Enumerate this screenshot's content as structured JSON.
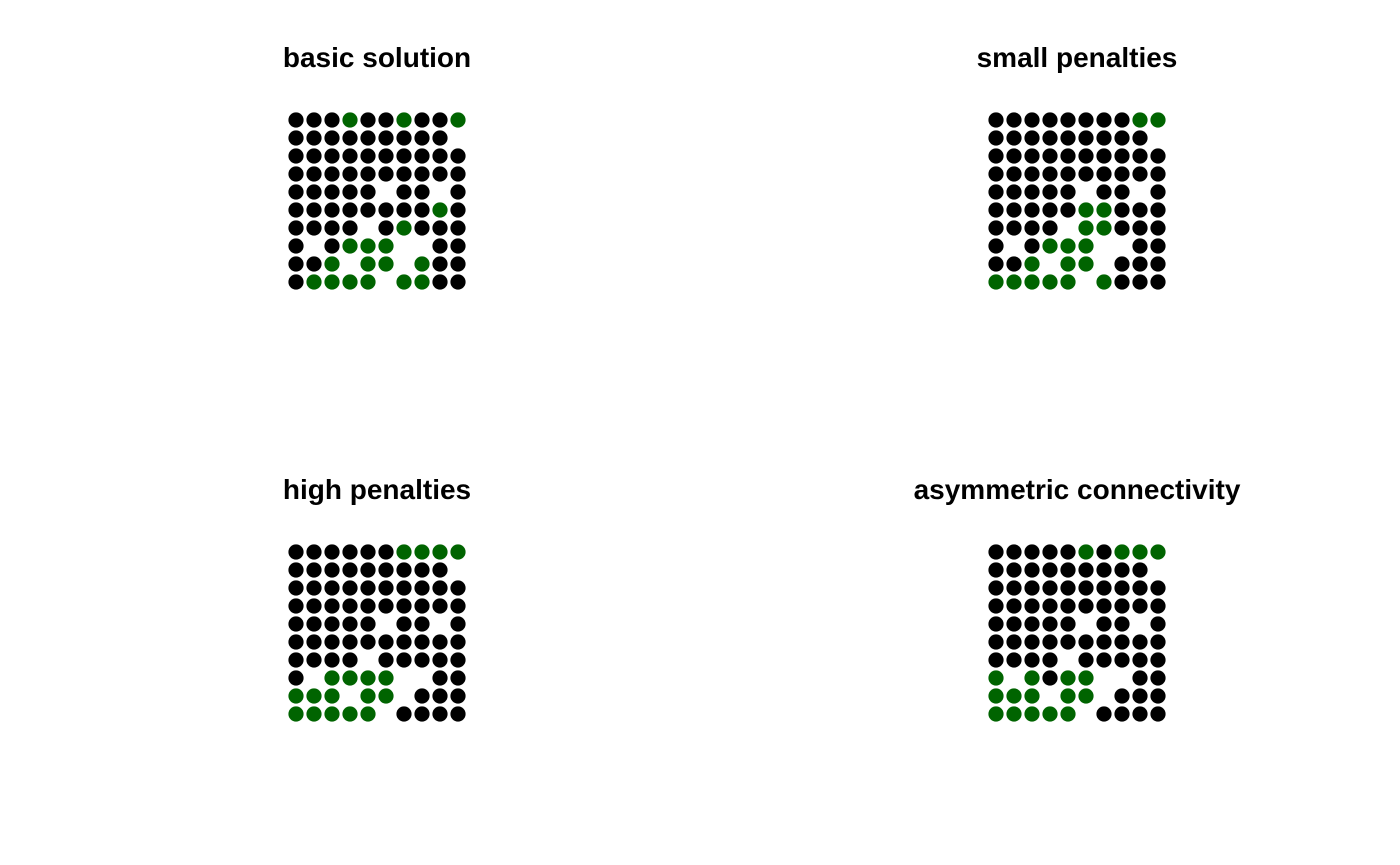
{
  "colors": {
    "selected": "#006400",
    "unselected": "#000000"
  },
  "chart_data": [
    {
      "type": "scatter",
      "title": "basic solution",
      "grid": false,
      "legend": "none",
      "rows": [
        "BBBGBBGBBG",
        "BBBBBBBBB.",
        "BBBBBBBBBB",
        "BBBBBBBBBB",
        "BBBBB.BB.B",
        "BBBBBBBBGB",
        "BBBB.BGBBB",
        "B.BGGG..BB",
        "BBG.GG.GBB",
        "BGGGG.GGBB"
      ]
    },
    {
      "type": "scatter",
      "title": "small penalties",
      "grid": false,
      "legend": "none",
      "rows": [
        "BBBBBBBBGG",
        "BBBBBBBBB.",
        "BBBBBBBBBB",
        "BBBBBBBBBB",
        "BBBBB.BB.B",
        "BBBBBGGBBB",
        "BBBB.GGBBB",
        "B.BGGG..BB",
        "BBG.GG.BBB",
        "GGGGG.GBBB"
      ]
    },
    {
      "type": "scatter",
      "title": "high penalties",
      "grid": false,
      "legend": "none",
      "rows": [
        "BBBBBBGGGG",
        "BBBBBBBBB.",
        "BBBBBBBBBB",
        "BBBBBBBBBB",
        "BBBBB.BB.B",
        "BBBBBBBBBB",
        "BBBB.BBBBB",
        "B.GGGG..BB",
        "GGG.GG.BBB",
        "GGGGG.BBBB"
      ]
    },
    {
      "type": "scatter",
      "title": "asymmetric connectivity",
      "grid": false,
      "legend": "none",
      "rows": [
        "BBBBBGBGGG",
        "BBBBBBBBB.",
        "BBBBBBBBBB",
        "BBBBBBBBBB",
        "BBBBB.BB.B",
        "BBBBBBBBBB",
        "BBBB.BBBBB",
        "G.GBGG..BB",
        "GGG.GG.BBB",
        "GGGGG.BBBB"
      ]
    }
  ]
}
